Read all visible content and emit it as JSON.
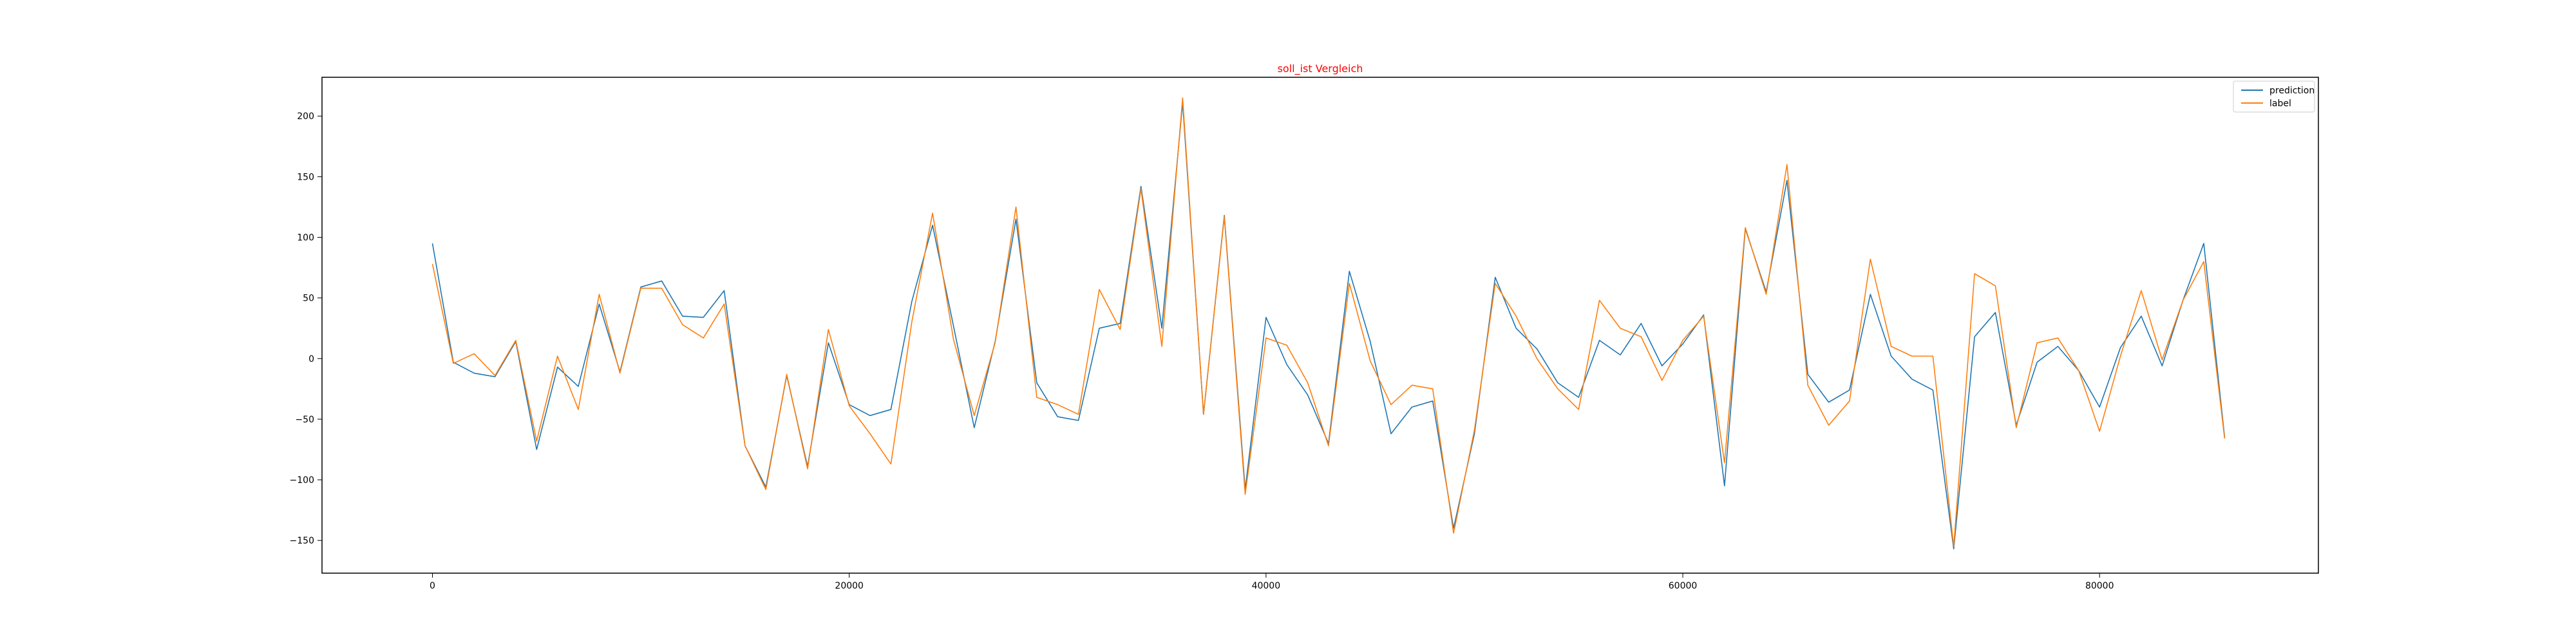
{
  "chart_data": {
    "type": "line",
    "title": "soll_ist Vergleich",
    "title_color": "#ff0000",
    "xlabel": "",
    "ylabel": "",
    "xlim": [
      -5300,
      90500
    ],
    "ylim": [
      -177,
      232
    ],
    "xticks": [
      0,
      20000,
      40000,
      60000,
      80000
    ],
    "yticks": [
      -150,
      -100,
      -50,
      0,
      50,
      100,
      150,
      200
    ],
    "grid": false,
    "legend_position": "top-right",
    "x": [
      0,
      1000,
      2000,
      3000,
      4000,
      5000,
      6000,
      7000,
      8000,
      9000,
      10000,
      11000,
      12000,
      13000,
      14000,
      15000,
      16000,
      17000,
      18000,
      19000,
      20000,
      21000,
      22000,
      23000,
      24000,
      25000,
      26000,
      27000,
      28000,
      29000,
      30000,
      31000,
      32000,
      33000,
      34000,
      35000,
      36000,
      37000,
      38000,
      39000,
      40000,
      41000,
      42000,
      43000,
      44000,
      45000,
      46000,
      47000,
      48000,
      49000,
      50000,
      51000,
      52000,
      53000,
      54000,
      55000,
      56000,
      57000,
      58000,
      59000,
      60000,
      61000,
      62000,
      63000,
      64000,
      65000,
      66000,
      67000,
      68000,
      69000,
      70000,
      71000,
      72000,
      73000,
      74000,
      75000,
      76000,
      77000,
      78000,
      79000,
      80000,
      81000,
      82000,
      83000,
      84000,
      85000,
      86000
    ],
    "series": [
      {
        "name": "prediction",
        "color": "#1f77b4",
        "values": [
          95,
          -3,
          -12,
          -15,
          14,
          -75,
          -7,
          -23,
          45,
          -11,
          59,
          64,
          35,
          34,
          56,
          -72,
          -106,
          -14,
          -89,
          13,
          -38,
          -47,
          -42,
          47,
          110,
          27,
          -57,
          14,
          115,
          -20,
          -48,
          -51,
          25,
          29,
          142,
          25,
          211,
          -46,
          118,
          -108,
          34,
          -5,
          -30,
          -70,
          72,
          14,
          -62,
          -40,
          -35,
          -140,
          -62,
          67,
          25,
          8,
          -20,
          -32,
          15,
          3,
          29,
          -6,
          12,
          36,
          -105,
          107,
          55,
          147,
          -13,
          -36,
          -26,
          53,
          2,
          -17,
          -26,
          -157,
          18,
          38,
          -55,
          -3,
          10,
          -10,
          -40,
          9,
          35,
          -6,
          48,
          95,
          -65
        ]
      },
      {
        "name": "label",
        "color": "#ff7f0e",
        "values": [
          78,
          -4,
          4,
          -14,
          15,
          -68,
          2,
          -42,
          53,
          -12,
          58,
          58,
          28,
          17,
          45,
          -72,
          -108,
          -13,
          -91,
          24,
          -39,
          -62,
          -87,
          30,
          120,
          16,
          -47,
          13,
          125,
          -32,
          -38,
          -46,
          57,
          24,
          140,
          10,
          215,
          -46,
          117,
          -112,
          17,
          11,
          -20,
          -72,
          62,
          -2,
          -38,
          -22,
          -25,
          -144,
          -59,
          62,
          35,
          0,
          -25,
          -42,
          48,
          25,
          18,
          -18,
          15,
          35,
          -86,
          108,
          53,
          160,
          -22,
          -55,
          -35,
          82,
          10,
          2,
          2,
          -155,
          70,
          60,
          -57,
          13,
          17,
          -10,
          -60,
          2,
          56,
          -1,
          48,
          80,
          -66
        ]
      }
    ]
  }
}
